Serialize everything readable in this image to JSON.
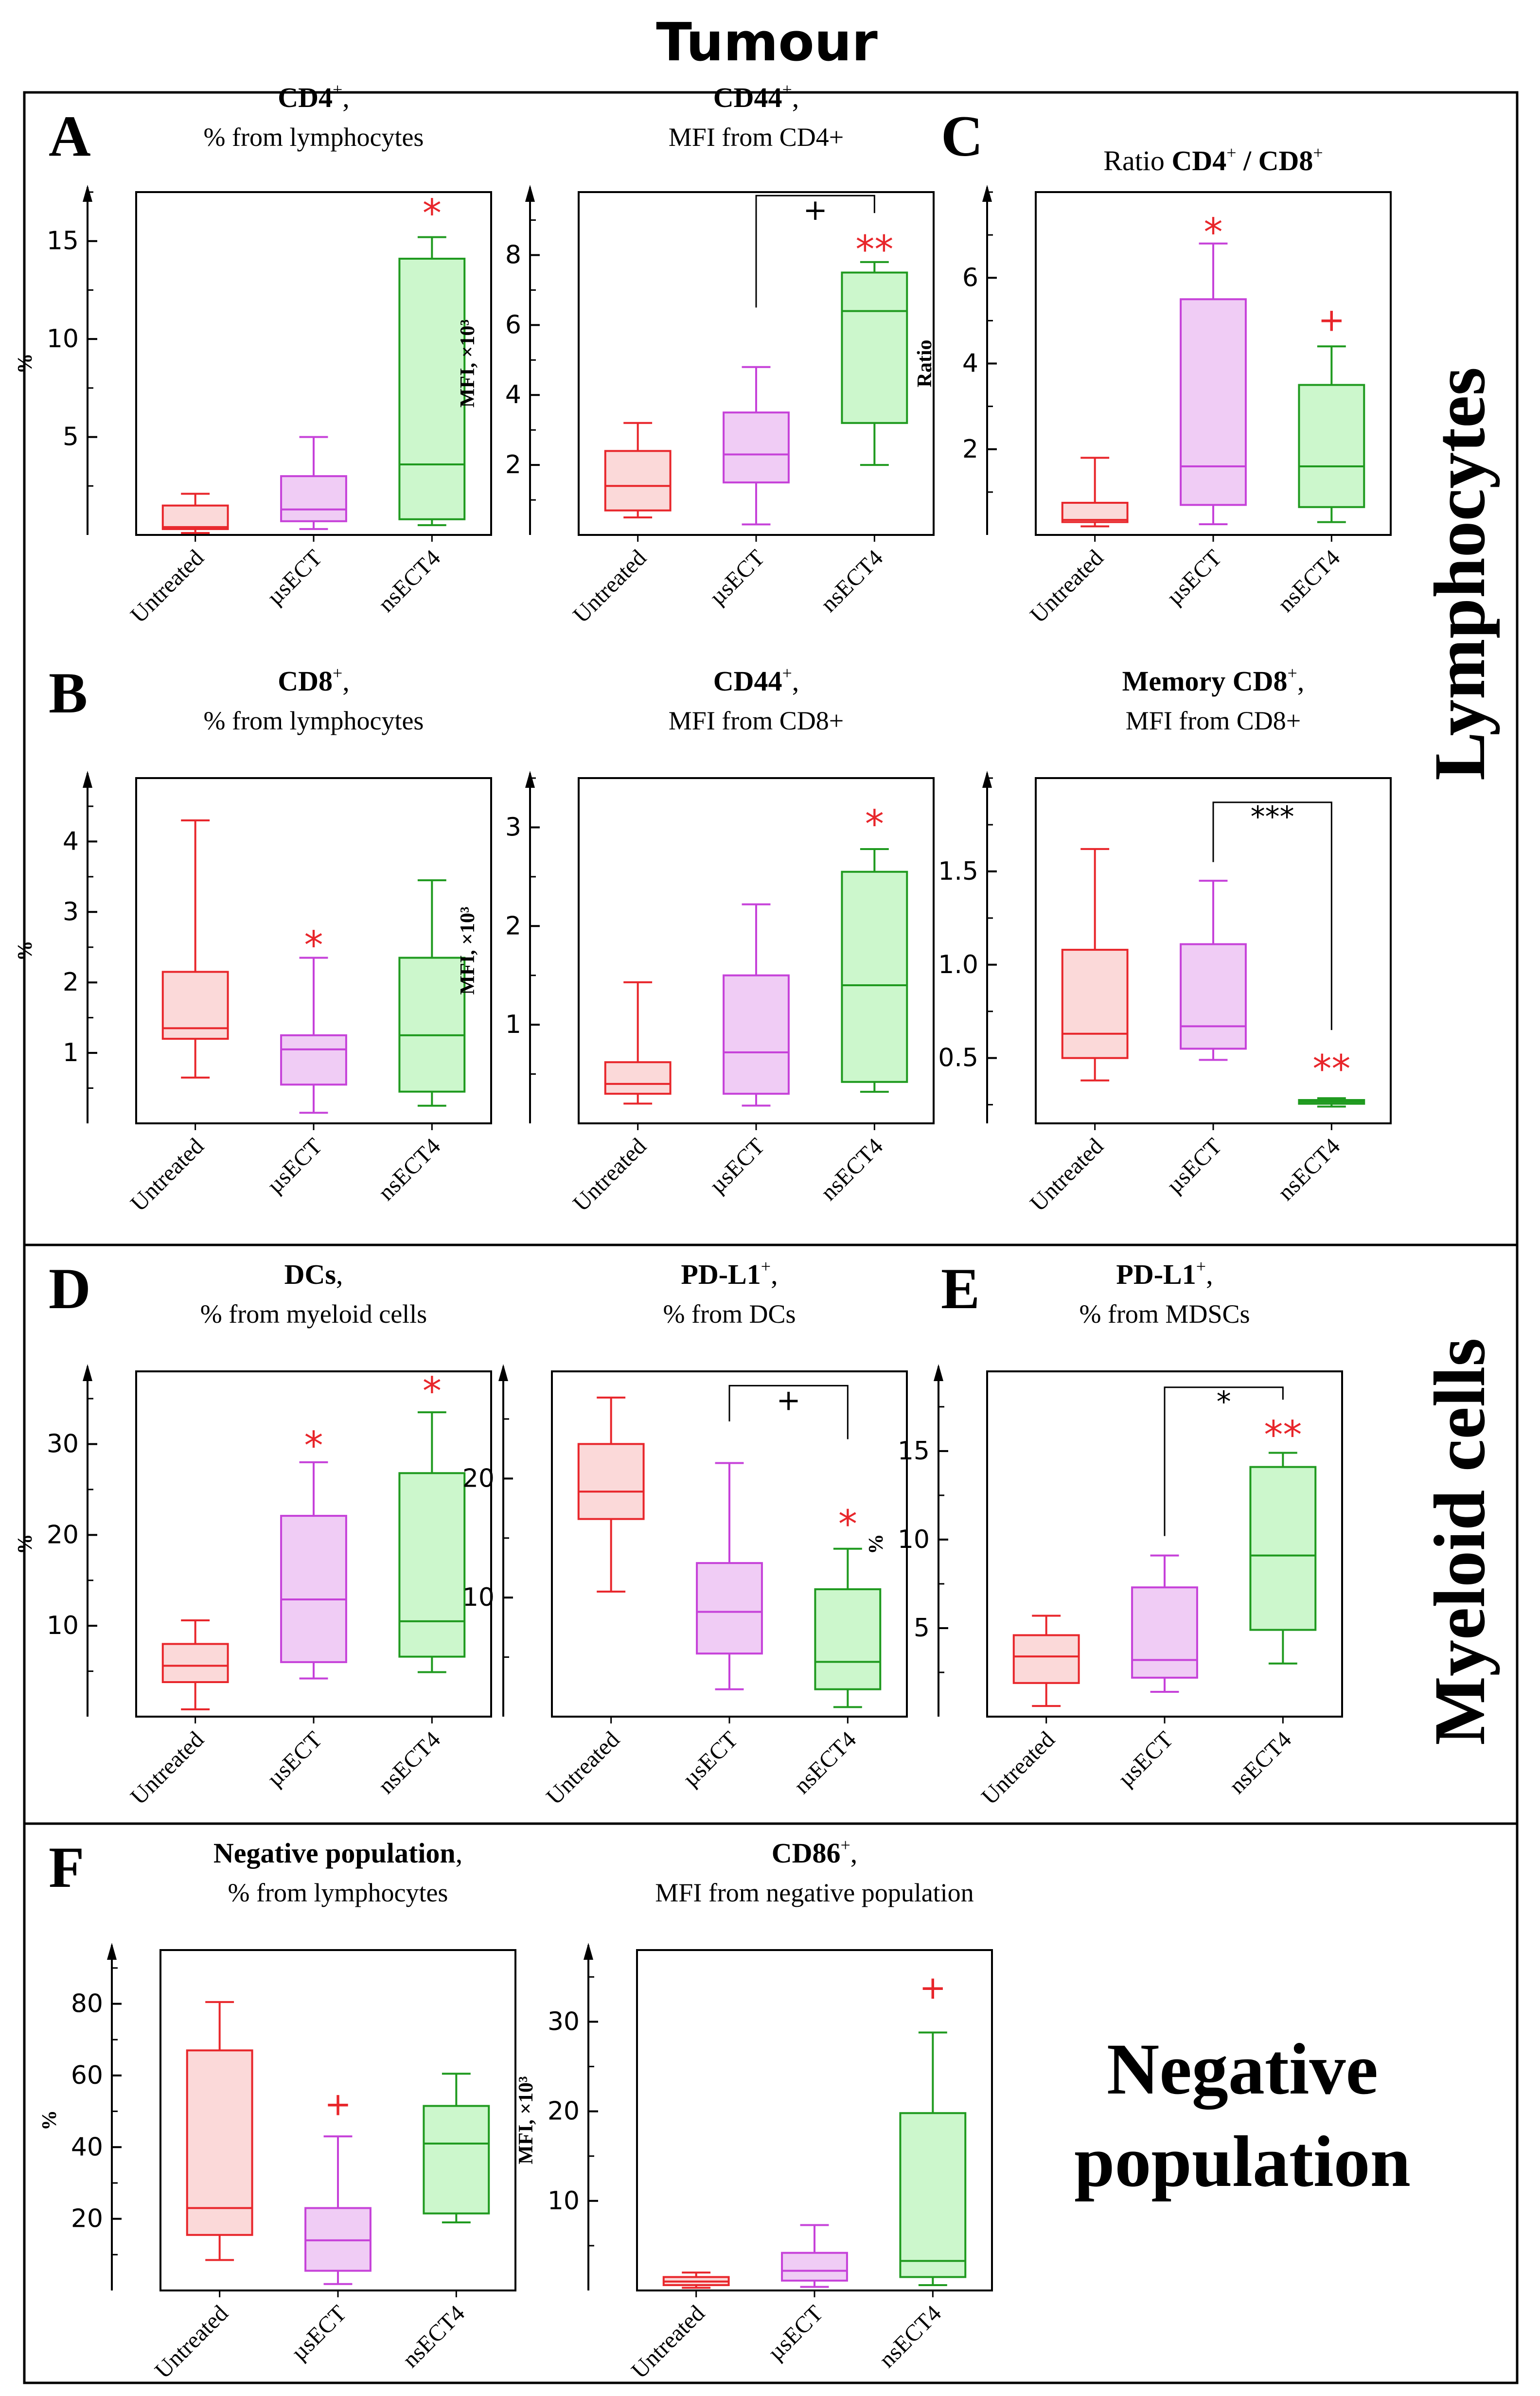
{
  "figure": {
    "title": "Tumour",
    "colors": {
      "untreated": "#e8262b",
      "usect": "#c642d9",
      "nsect4": "#1f9a1f",
      "untreated_fill": "#fbd9d9",
      "usect_fill": "#f0ccf5",
      "nsect4_fill": "#ccf7cc",
      "star": "#e8262b",
      "frame": "#000000"
    },
    "categories": [
      "Untreated",
      "µsECT",
      "nsECT4"
    ],
    "sections": [
      {
        "id": "lymphocytes",
        "label": "Lymphocytes"
      },
      {
        "id": "myeloid",
        "label": "Myeloid cells"
      },
      {
        "id": "negative",
        "label_lines": [
          "Negative",
          "population"
        ]
      }
    ]
  },
  "chart_data": [
    {
      "id": "A1",
      "panel_letter": "A",
      "type": "box",
      "title_bold": "CD4",
      "title_sup": "+",
      "title_rest": ",",
      "subtitle": "% from lymphocytes",
      "ylabel": "%",
      "ylim": [
        0,
        17.5
      ],
      "yticks": [
        5,
        10,
        15
      ],
      "categories": [
        "Untreated",
        "µsECT",
        "nsECT4"
      ],
      "boxes": [
        {
          "min": 0.1,
          "q1": 0.3,
          "median": 0.4,
          "q3": 1.5,
          "max": 2.1
        },
        {
          "min": 0.3,
          "q1": 0.7,
          "median": 1.3,
          "q3": 3.0,
          "max": 5.0
        },
        {
          "min": 0.5,
          "q1": 0.8,
          "median": 3.6,
          "q3": 14.1,
          "max": 15.2
        }
      ],
      "marks": [
        {
          "cat": 2,
          "text": "*",
          "y": 16.5
        }
      ],
      "brackets": []
    },
    {
      "id": "A2",
      "type": "box",
      "title_bold": "CD44",
      "title_sup": "+",
      "title_rest": ",",
      "subtitle": "MFI from CD4+",
      "ylabel": "MFI, ×10³",
      "ylim": [
        0,
        9.8
      ],
      "yticks": [
        2,
        4,
        6,
        8
      ],
      "categories": [
        "Untreated",
        "µsECT",
        "nsECT4"
      ],
      "boxes": [
        {
          "min": 0.5,
          "q1": 0.7,
          "median": 1.4,
          "q3": 2.4,
          "max": 3.2
        },
        {
          "min": 0.3,
          "q1": 1.5,
          "median": 2.3,
          "q3": 3.5,
          "max": 4.8
        },
        {
          "min": 2.0,
          "q1": 3.2,
          "median": 6.4,
          "q3": 7.5,
          "max": 7.8
        }
      ],
      "marks": [
        {
          "cat": 2,
          "text": "**",
          "y": 8.2
        }
      ],
      "brackets": [
        {
          "from": 1,
          "to": 2,
          "y": 9.7,
          "from_low": 6.5,
          "to_low": 9.2,
          "text": "+",
          "text_color": "#000000"
        }
      ]
    },
    {
      "id": "C1",
      "panel_letter": "C",
      "type": "box",
      "title_pre": "Ratio ",
      "title_bold": "CD4",
      "title_sup": "+",
      "title_bold2": " / CD8",
      "title_sup2": "+",
      "subtitle": "",
      "ylabel": "Ratio",
      "ylim": [
        0,
        8
      ],
      "yticks": [
        2,
        4,
        6
      ],
      "categories": [
        "Untreated",
        "µsECT",
        "nsECT4"
      ],
      "boxes": [
        {
          "min": 0.2,
          "q1": 0.3,
          "median": 0.35,
          "q3": 0.75,
          "max": 1.8
        },
        {
          "min": 0.25,
          "q1": 0.7,
          "median": 1.6,
          "q3": 5.5,
          "max": 6.8
        },
        {
          "min": 0.3,
          "q1": 0.65,
          "median": 1.6,
          "q3": 3.5,
          "max": 4.4
        }
      ],
      "marks": [
        {
          "cat": 1,
          "text": "*",
          "y": 7.1
        },
        {
          "cat": 2,
          "text": "+",
          "y": 5.1
        }
      ],
      "brackets": []
    },
    {
      "id": "B1",
      "panel_letter": "B",
      "type": "box",
      "title_bold": "CD8",
      "title_sup": "+",
      "title_rest": ",",
      "subtitle": "% from lymphocytes",
      "ylabel": "%",
      "ylim": [
        0,
        4.9
      ],
      "yticks": [
        1,
        2,
        3,
        4
      ],
      "categories": [
        "Untreated",
        "µsECT",
        "nsECT4"
      ],
      "boxes": [
        {
          "min": 0.65,
          "q1": 1.2,
          "median": 1.35,
          "q3": 2.15,
          "max": 4.3
        },
        {
          "min": 0.15,
          "q1": 0.55,
          "median": 1.05,
          "q3": 1.25,
          "max": 2.35
        },
        {
          "min": 0.25,
          "q1": 0.45,
          "median": 1.25,
          "q3": 2.35,
          "max": 3.45
        }
      ],
      "marks": [
        {
          "cat": 1,
          "text": "*",
          "y": 2.55
        }
      ],
      "brackets": []
    },
    {
      "id": "B2",
      "type": "box",
      "title_bold": "CD44",
      "title_sup": "+",
      "title_rest": ",",
      "subtitle": "MFI from CD8+",
      "ylabel": "MFI, ×10³",
      "ylim": [
        0,
        3.5
      ],
      "yticks": [
        1,
        2,
        3
      ],
      "categories": [
        "Untreated",
        "µsECT",
        "nsECT4"
      ],
      "boxes": [
        {
          "min": 0.2,
          "q1": 0.3,
          "median": 0.4,
          "q3": 0.62,
          "max": 1.43
        },
        {
          "min": 0.18,
          "q1": 0.3,
          "median": 0.72,
          "q3": 1.5,
          "max": 2.22
        },
        {
          "min": 0.32,
          "q1": 0.42,
          "median": 1.4,
          "q3": 2.55,
          "max": 2.78
        }
      ],
      "marks": [
        {
          "cat": 2,
          "text": "*",
          "y": 3.05
        }
      ],
      "brackets": []
    },
    {
      "id": "B3",
      "type": "box",
      "title_bold": "Memory CD8",
      "title_sup": "+",
      "title_rest": ",",
      "subtitle": "MFI from CD8+",
      "ylabel": "",
      "ylim": [
        0.15,
        2.0
      ],
      "yticks": [
        0.5,
        1.0,
        1.5
      ],
      "ytick_labels": [
        "0.5",
        "1.0",
        "1.5"
      ],
      "categories": [
        "Untreated",
        "µsECT",
        "nsECT4"
      ],
      "boxes": [
        {
          "min": 0.38,
          "q1": 0.5,
          "median": 0.63,
          "q3": 1.08,
          "max": 1.62
        },
        {
          "min": 0.49,
          "q1": 0.55,
          "median": 0.67,
          "q3": 1.11,
          "max": 1.45
        },
        {
          "min": 0.24,
          "q1": 0.255,
          "median": 0.265,
          "q3": 0.275,
          "max": 0.285
        }
      ],
      "marks": [
        {
          "cat": 2,
          "text": "**",
          "y": 0.45
        }
      ],
      "brackets": [
        {
          "from": 1,
          "to": 2,
          "y": 1.87,
          "from_low": 1.55,
          "to_low": 0.65,
          "text": "***",
          "text_color": "#000000"
        }
      ]
    },
    {
      "id": "D1",
      "panel_letter": "D",
      "type": "box",
      "title_bold": "DCs",
      "title_sup": "",
      "title_rest": ",",
      "subtitle": "% from myeloid cells",
      "ylabel": "%",
      "ylim": [
        0,
        38
      ],
      "yticks": [
        10,
        20,
        30
      ],
      "categories": [
        "Untreated",
        "µsECT",
        "nsECT4"
      ],
      "boxes": [
        {
          "min": 0.8,
          "q1": 3.8,
          "median": 5.6,
          "q3": 8.0,
          "max": 10.6
        },
        {
          "min": 4.2,
          "q1": 6.0,
          "median": 12.9,
          "q3": 22.1,
          "max": 28.0
        },
        {
          "min": 4.9,
          "q1": 6.6,
          "median": 10.5,
          "q3": 26.8,
          "max": 33.5
        }
      ],
      "marks": [
        {
          "cat": 1,
          "text": "*",
          "y": 30.0
        },
        {
          "cat": 2,
          "text": "*",
          "y": 36.0
        }
      ],
      "brackets": []
    },
    {
      "id": "D2",
      "type": "box",
      "title_bold": "PD-L1",
      "title_sup": "+",
      "title_rest": ",",
      "subtitle": "% from DCs",
      "ylabel": "",
      "ylim": [
        0,
        29
      ],
      "yticks": [
        10,
        20
      ],
      "categories": [
        "Untreated",
        "µsECT",
        "nsECT4"
      ],
      "boxes": [
        {
          "min": 10.5,
          "q1": 16.6,
          "median": 18.9,
          "q3": 22.9,
          "max": 26.8
        },
        {
          "min": 2.3,
          "q1": 5.3,
          "median": 8.8,
          "q3": 12.9,
          "max": 21.3
        },
        {
          "min": 0.8,
          "q1": 2.3,
          "median": 4.6,
          "q3": 10.7,
          "max": 14.1
        }
      ],
      "marks": [
        {
          "cat": 2,
          "text": "*",
          "y": 16.3
        }
      ],
      "brackets": [
        {
          "from": 1,
          "to": 2,
          "y": 27.8,
          "from_low": 24.8,
          "to_low": 23.3,
          "text": "+",
          "text_color": "#000000"
        }
      ]
    },
    {
      "id": "E1",
      "panel_letter": "E",
      "type": "box",
      "title_bold": "PD-L1",
      "title_sup": "+",
      "title_rest": ",",
      "subtitle": "% from MDSCs",
      "ylabel": "%",
      "ylim": [
        0,
        19.5
      ],
      "yticks": [
        5,
        10,
        15
      ],
      "categories": [
        "Untreated",
        "µsECT",
        "nsECT4"
      ],
      "boxes": [
        {
          "min": 0.6,
          "q1": 1.9,
          "median": 3.4,
          "q3": 4.6,
          "max": 5.7
        },
        {
          "min": 1.4,
          "q1": 2.2,
          "median": 3.2,
          "q3": 7.3,
          "max": 9.1
        },
        {
          "min": 3.0,
          "q1": 4.9,
          "median": 9.1,
          "q3": 14.1,
          "max": 14.9
        }
      ],
      "marks": [
        {
          "cat": 2,
          "text": "**",
          "y": 16.0
        }
      ],
      "brackets": [
        {
          "from": 1,
          "to": 2,
          "y": 18.6,
          "from_low": 10.2,
          "to_low": 17.9,
          "text": "*",
          "text_color": "#000000"
        }
      ]
    },
    {
      "id": "F1",
      "panel_letter": "F",
      "type": "box",
      "title_bold": "Negative population",
      "title_sup": "",
      "title_rest": ",",
      "subtitle": "% from lymphocytes",
      "ylabel": "%",
      "ylim": [
        0,
        95
      ],
      "yticks": [
        20,
        40,
        60,
        80
      ],
      "categories": [
        "Untreated",
        "µsECT",
        "nsECT4"
      ],
      "boxes": [
        {
          "min": 8.5,
          "q1": 15.5,
          "median": 23.0,
          "q3": 67.0,
          "max": 80.5
        },
        {
          "min": 1.8,
          "q1": 5.5,
          "median": 14.0,
          "q3": 23.0,
          "max": 43.0
        },
        {
          "min": 19.0,
          "q1": 21.5,
          "median": 41.0,
          "q3": 51.5,
          "max": 60.5
        }
      ],
      "marks": [
        {
          "cat": 1,
          "text": "+",
          "y": 53.0
        }
      ],
      "brackets": []
    },
    {
      "id": "F2",
      "type": "box",
      "title_bold": "CD86",
      "title_sup": "+",
      "title_rest": ",",
      "subtitle": "MFI from negative population",
      "ylabel": "MFI, ×10³",
      "ylim": [
        0,
        38
      ],
      "yticks": [
        10,
        20,
        30
      ],
      "categories": [
        "Untreated",
        "µsECT",
        "nsECT4"
      ],
      "boxes": [
        {
          "min": 0.3,
          "q1": 0.6,
          "median": 1.0,
          "q3": 1.5,
          "max": 2.0
        },
        {
          "min": 0.4,
          "q1": 1.1,
          "median": 2.2,
          "q3": 4.2,
          "max": 7.3
        },
        {
          "min": 0.6,
          "q1": 1.5,
          "median": 3.3,
          "q3": 19.8,
          "max": 28.8
        }
      ],
      "marks": [
        {
          "cat": 2,
          "text": "+",
          "y": 34.2
        }
      ],
      "brackets": []
    }
  ]
}
